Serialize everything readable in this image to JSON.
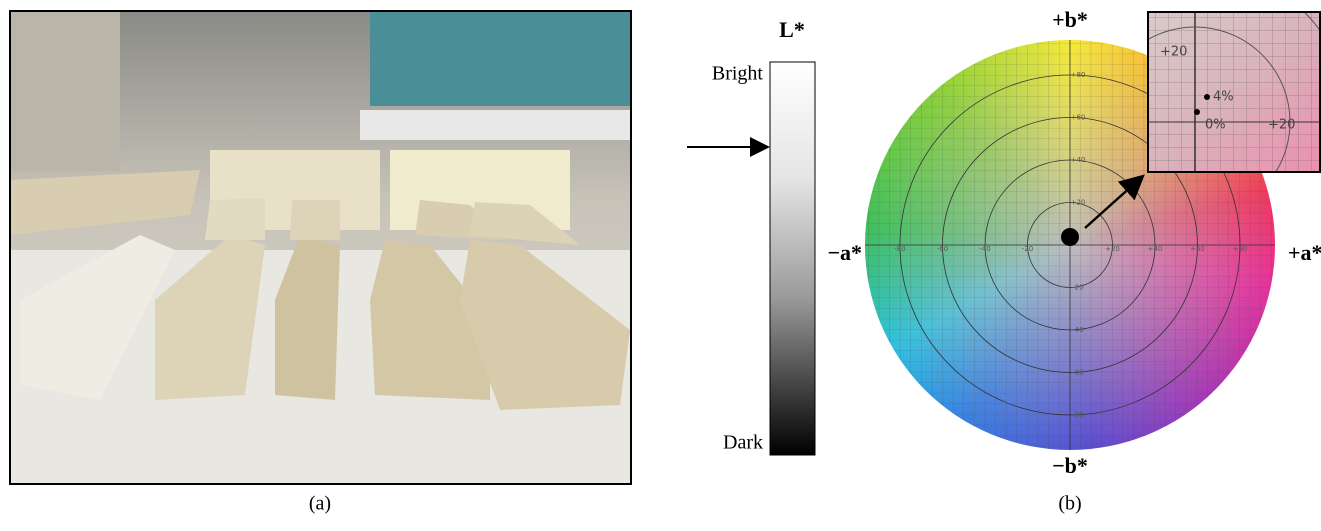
{
  "panel_a": {
    "caption": "(a)"
  },
  "panel_b": {
    "caption": "(b)",
    "lightness_scale": {
      "title": "L*",
      "top_label": "Bright",
      "bottom_label": "Dark"
    },
    "color_wheel": {
      "top_label": "+b*",
      "bottom_label": "−b*",
      "left_label": "−a*",
      "right_label": "+a*",
      "a_tick_labels": [
        "-80",
        "-60",
        "-40",
        "-20",
        "+20",
        "+40",
        "+60",
        "+80"
      ],
      "b_tick_labels": [
        "+80",
        "+60",
        "+40",
        "+20",
        "-20",
        "-40",
        "-60",
        "-80"
      ]
    },
    "inset": {
      "tick_labels": [
        "+20",
        "+20"
      ],
      "point_labels": [
        "4%",
        "0%"
      ]
    }
  }
}
